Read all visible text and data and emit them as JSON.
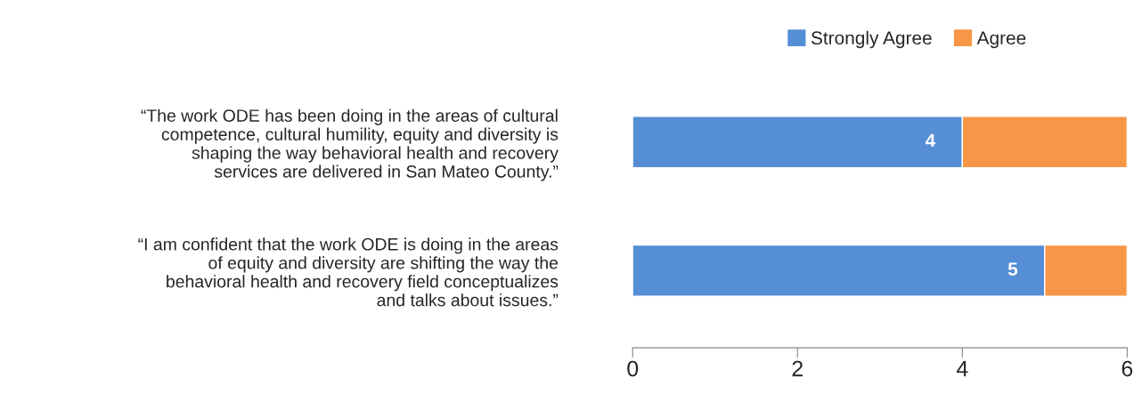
{
  "chart_data": {
    "type": "bar",
    "orientation": "horizontal",
    "stacked": true,
    "categories": [
      "“The work ODE has been doing in the areas of cultural\ncompetence, cultural humility, equity and diversity is\nshaping the way behavioral health and recovery\nservices are delivered in San Mateo County.”",
      "“I am confident that the work ODE is doing in the areas\nof equity and diversity are shifting the way the\nbehavioral health and recovery field conceptualizes\nand talks about issues.”"
    ],
    "series": [
      {
        "name": "Strongly Agree",
        "color": "#558ed5",
        "values": [
          4,
          5
        ],
        "value_labels": [
          "4",
          "5"
        ]
      },
      {
        "name": "Agree",
        "color": "#f79646",
        "values": [
          2,
          1
        ]
      }
    ],
    "xlim": [
      0,
      6
    ],
    "xticks": [
      0,
      2,
      4,
      6
    ],
    "grid": false,
    "legend": "top right"
  }
}
